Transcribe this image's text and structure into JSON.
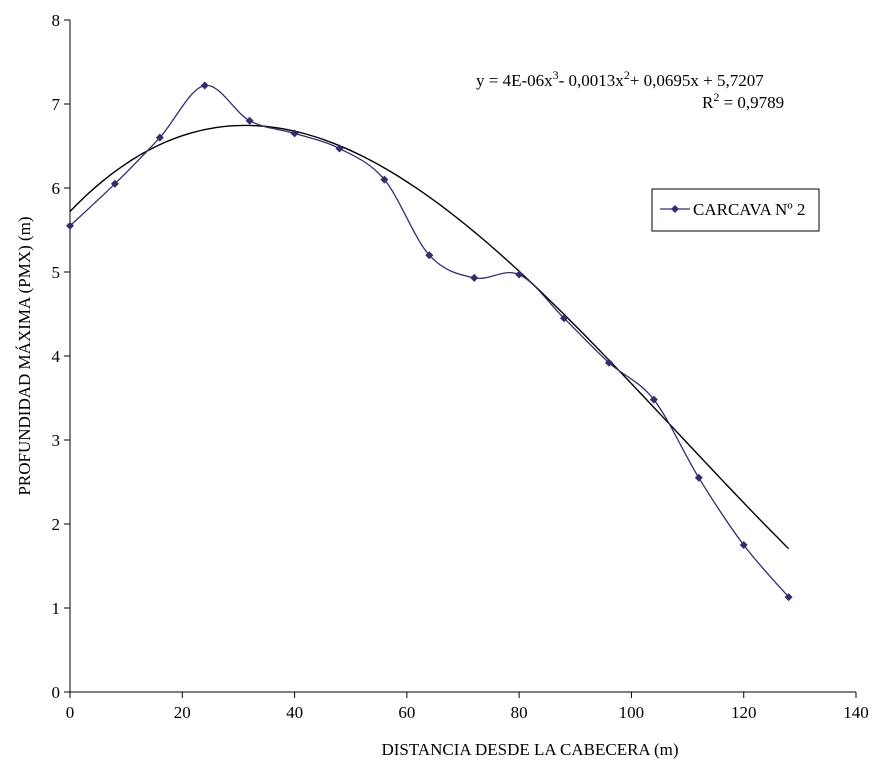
{
  "chart_data": {
    "type": "scatter",
    "xlabel": "DISTANCIA DESDE LA CABECERA (m)",
    "ylabel": "PROFUNDIDAD MÁXIMA (PMX) (m)",
    "xlim": [
      0,
      140
    ],
    "ylim": [
      0,
      8
    ],
    "xticks": [
      0,
      20,
      40,
      60,
      80,
      100,
      120,
      140
    ],
    "yticks": [
      0,
      1,
      2,
      3,
      4,
      5,
      6,
      7,
      8
    ],
    "grid": false,
    "legend_position": "right",
    "series": [
      {
        "name": "CARCAVA Nº 2",
        "color": "#3b2a6b",
        "marker": "diamond",
        "smooth": true,
        "x": [
          0,
          8,
          16,
          24,
          32,
          40,
          48,
          56,
          64,
          72,
          80,
          88,
          96,
          104,
          112,
          120,
          128
        ],
        "y": [
          5.55,
          6.05,
          6.6,
          7.22,
          6.8,
          6.65,
          6.47,
          6.1,
          5.2,
          4.93,
          4.97,
          4.45,
          3.92,
          3.48,
          2.55,
          1.75,
          1.13
        ]
      }
    ],
    "trendline": {
      "type": "polynomial",
      "color": "#000000",
      "coefficients": [
        4e-06,
        -0.0013,
        0.0695,
        5.7207
      ],
      "x_range": [
        0,
        128
      ],
      "equation_parts": [
        "y = 4E-06x",
        "3",
        "- 0,0013x",
        "2",
        "+ 0,0695x  + 5,7207"
      ],
      "r2_parts": [
        "R",
        "2",
        " = 0,9789"
      ]
    }
  }
}
